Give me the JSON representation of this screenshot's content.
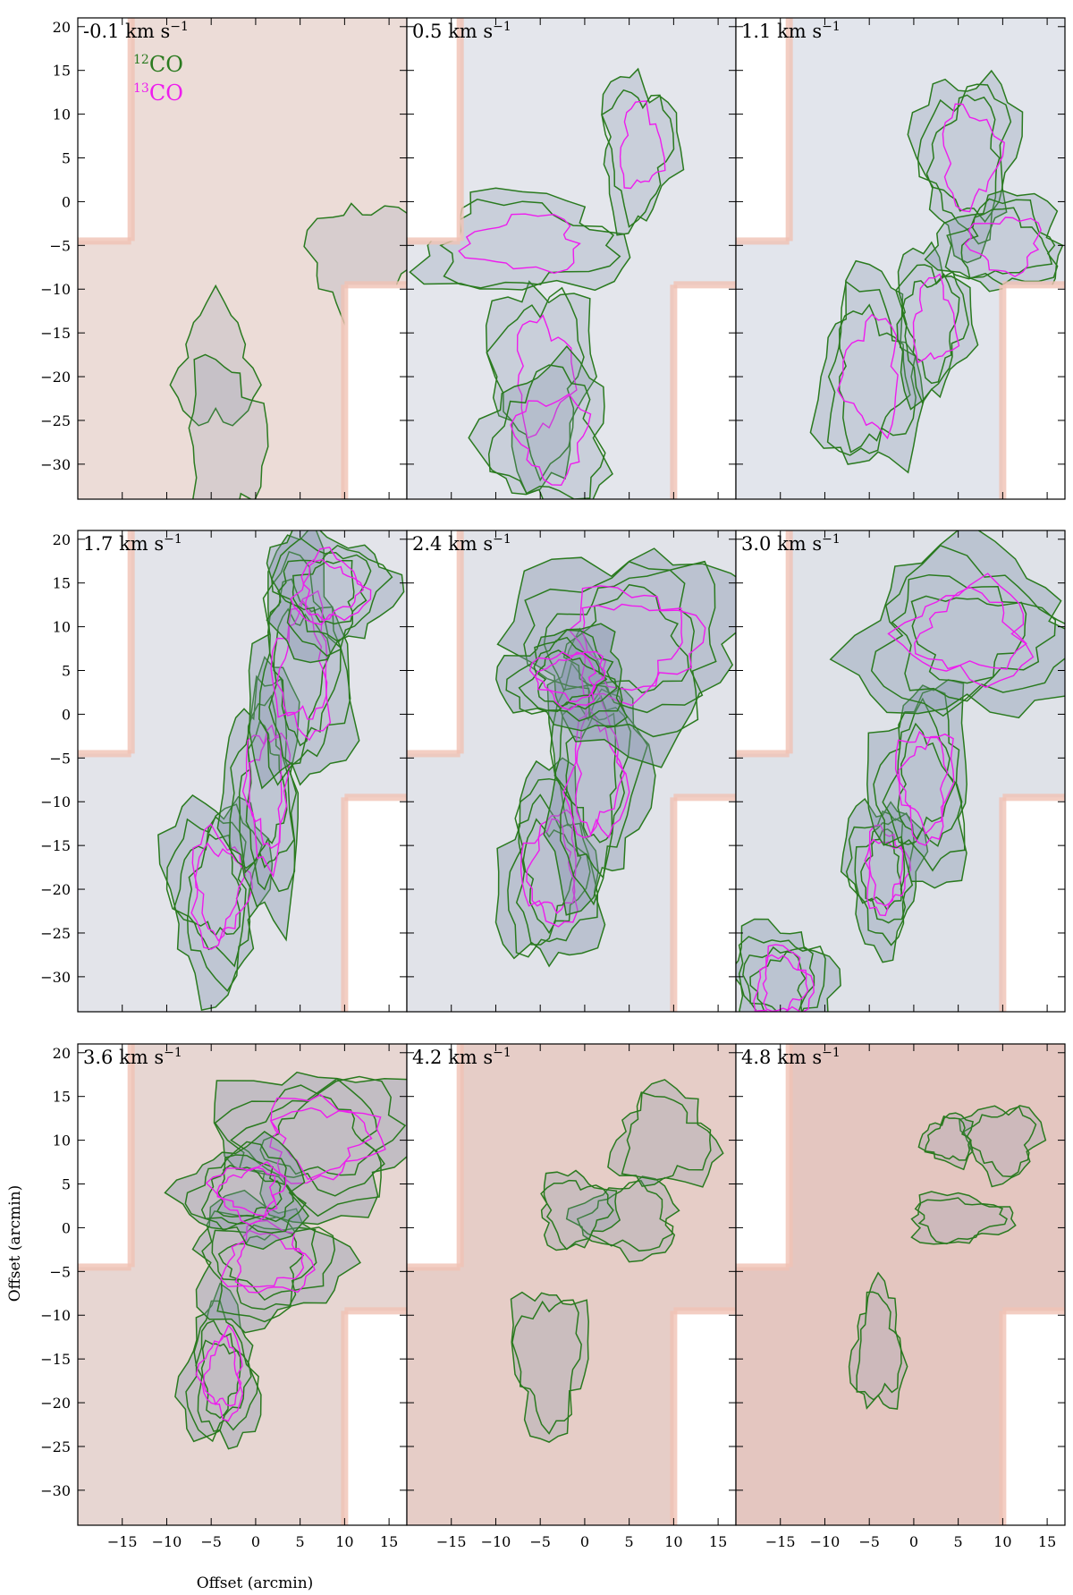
{
  "figure": {
    "xlabel": "Offset (arcmin)",
    "ylabel": "Offset (arcmin)",
    "legend": {
      "co12_label": "CO",
      "co12_mass": "12",
      "co13_label": "CO",
      "co13_mass": "13"
    },
    "colors": {
      "co12": "#2a7a1f",
      "co13": "#ee1cee",
      "bg_low": "#dfe3ea",
      "bg_high": "#e9c7bf"
    }
  },
  "chart_data": {
    "type": "contour",
    "panel_grid": {
      "rows": 3,
      "cols": 3,
      "order": "row-major"
    },
    "units_suffix": "km s",
    "xlim": [
      -20,
      17
    ],
    "ylim": [
      -34,
      21
    ],
    "xticks": [
      -15,
      -10,
      -5,
      0,
      5,
      10,
      15
    ],
    "yticks": [
      20,
      15,
      10,
      5,
      0,
      -5,
      -10,
      -15,
      -20,
      -25,
      -30
    ],
    "masked_regions": [
      {
        "x": [
          -20,
          -14
        ],
        "y": [
          -4.5,
          21
        ]
      },
      {
        "x": [
          10,
          17
        ],
        "y": [
          -34,
          -9.5
        ]
      }
    ],
    "panels": [
      {
        "velocity": "-0.1",
        "bg": "#ecdcd7",
        "co12_level": 0.25,
        "co13_level": 0.05,
        "structures": [
          {
            "x": -4.5,
            "y": -19,
            "w": 3,
            "h": 5
          },
          {
            "x": -3.5,
            "y": -28,
            "w": 3,
            "h": 7
          },
          {
            "x": 12,
            "y": -7,
            "w": 4,
            "h": 5
          }
        ]
      },
      {
        "velocity": "0.5",
        "bg": "#e4e6ec",
        "co12_level": 0.45,
        "co13_level": 0.15,
        "structures": [
          {
            "x": -5,
            "y": -20,
            "w": 4,
            "h": 8
          },
          {
            "x": -4,
            "y": -27,
            "w": 5,
            "h": 6
          },
          {
            "x": -7,
            "y": -5,
            "w": 8,
            "h": 4
          },
          {
            "x": 6,
            "y": 6,
            "w": 3,
            "h": 6
          }
        ]
      },
      {
        "velocity": "1.1",
        "bg": "#e2e5ec",
        "co12_level": 0.5,
        "co13_level": 0.25,
        "structures": [
          {
            "x": -5,
            "y": -20,
            "w": 4,
            "h": 8
          },
          {
            "x": 2,
            "y": -14,
            "w": 3,
            "h": 6
          },
          {
            "x": 6,
            "y": 5,
            "w": 4,
            "h": 7
          },
          {
            "x": 10,
            "y": -5,
            "w": 5,
            "h": 4
          }
        ]
      },
      {
        "velocity": "1.7",
        "bg": "#e3e4ea",
        "co12_level": 0.7,
        "co13_level": 0.4,
        "structures": [
          {
            "x": -4.5,
            "y": -20,
            "w": 4,
            "h": 8
          },
          {
            "x": 1,
            "y": -9,
            "w": 3,
            "h": 10
          },
          {
            "x": 5,
            "y": 5,
            "w": 4,
            "h": 10
          },
          {
            "x": 8,
            "y": 14,
            "w": 5,
            "h": 5
          }
        ]
      },
      {
        "velocity": "2.4",
        "bg": "#e1e3e9",
        "co12_level": 0.8,
        "co13_level": 0.55,
        "structures": [
          {
            "x": -4,
            "y": -18,
            "w": 4,
            "h": 8
          },
          {
            "x": 1,
            "y": -7,
            "w": 4,
            "h": 10
          },
          {
            "x": 5,
            "y": 8,
            "w": 9,
            "h": 8
          },
          {
            "x": -2,
            "y": 4,
            "w": 5,
            "h": 4
          }
        ]
      },
      {
        "velocity": "3.0",
        "bg": "#dfe2e8",
        "co12_level": 0.75,
        "co13_level": 0.5,
        "structures": [
          {
            "x": -3.5,
            "y": -18,
            "w": 3,
            "h": 6
          },
          {
            "x": 1,
            "y": -8,
            "w": 4,
            "h": 8
          },
          {
            "x": 6,
            "y": 9,
            "w": 9,
            "h": 7
          },
          {
            "x": -15,
            "y": -31,
            "w": 4,
            "h": 5
          }
        ]
      },
      {
        "velocity": "3.6",
        "bg": "#e7d6d2",
        "co12_level": 0.7,
        "co13_level": 0.45,
        "structures": [
          {
            "x": -4,
            "y": -17,
            "w": 3,
            "h": 6
          },
          {
            "x": 1,
            "y": -4,
            "w": 6,
            "h": 5
          },
          {
            "x": 7,
            "y": 10,
            "w": 8,
            "h": 6
          },
          {
            "x": -1,
            "y": 4,
            "w": 5,
            "h": 4
          }
        ]
      },
      {
        "velocity": "4.2",
        "bg": "#e6cdc7",
        "co12_level": 0.45,
        "co13_level": 0.1,
        "structures": [
          {
            "x": -4,
            "y": -15,
            "w": 3,
            "h": 6
          },
          {
            "x": 5,
            "y": 1,
            "w": 4,
            "h": 3
          },
          {
            "x": 9,
            "y": 10,
            "w": 4,
            "h": 4
          },
          {
            "x": -1,
            "y": 2,
            "w": 3,
            "h": 3
          }
        ]
      },
      {
        "velocity": "4.8",
        "bg": "#e4c6c0",
        "co12_level": 0.35,
        "co13_level": 0.05,
        "structures": [
          {
            "x": -4,
            "y": -14,
            "w": 2,
            "h": 5
          },
          {
            "x": 5,
            "y": 1,
            "w": 4,
            "h": 2
          },
          {
            "x": 10,
            "y": 10,
            "w": 3,
            "h": 3
          },
          {
            "x": 4,
            "y": 10,
            "w": 2,
            "h": 2
          }
        ]
      }
    ]
  }
}
